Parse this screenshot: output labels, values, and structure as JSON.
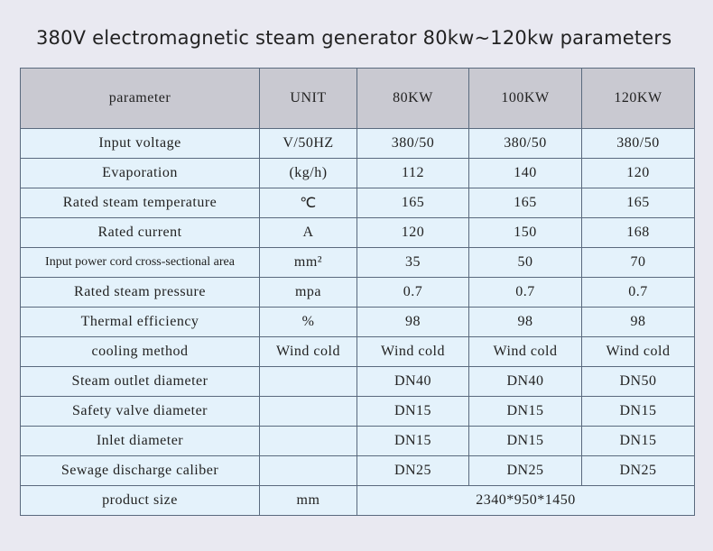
{
  "title": "380V electromagnetic steam generator 80kw~120kw parameters",
  "table": {
    "header": [
      "parameter",
      "UNIT",
      "80KW",
      "100KW",
      "120KW"
    ],
    "rows": [
      [
        "Input voltage",
        "V/50HZ",
        "380/50",
        "380/50",
        "380/50"
      ],
      [
        "Evaporation",
        "(kg/h)",
        "112",
        "140",
        "120"
      ],
      [
        "Rated steam temperature",
        "℃",
        "165",
        "165",
        "165"
      ],
      [
        "Rated current",
        "A",
        "120",
        "150",
        "168"
      ],
      [
        "Input power cord cross-sectional area",
        "mm²",
        "35",
        "50",
        "70"
      ],
      [
        "Rated steam pressure",
        "mpa",
        "0.7",
        "0.7",
        "0.7"
      ],
      [
        "Thermal efficiency",
        "%",
        "98",
        "98",
        "98"
      ],
      [
        "cooling method",
        "Wind cold",
        "Wind cold",
        "Wind cold",
        "Wind cold"
      ],
      [
        "Steam outlet diameter",
        null,
        "DN40",
        "DN40",
        "DN50"
      ],
      [
        "Safety valve diameter",
        null,
        "DN15",
        "DN15",
        "DN15"
      ],
      [
        "Inlet diameter",
        null,
        "DN15",
        "DN15",
        "DN15"
      ],
      [
        "Sewage discharge caliber",
        null,
        "DN25",
        "DN25",
        "DN25"
      ],
      [
        "product size",
        "mm",
        "2340*950*1450"
      ]
    ]
  }
}
